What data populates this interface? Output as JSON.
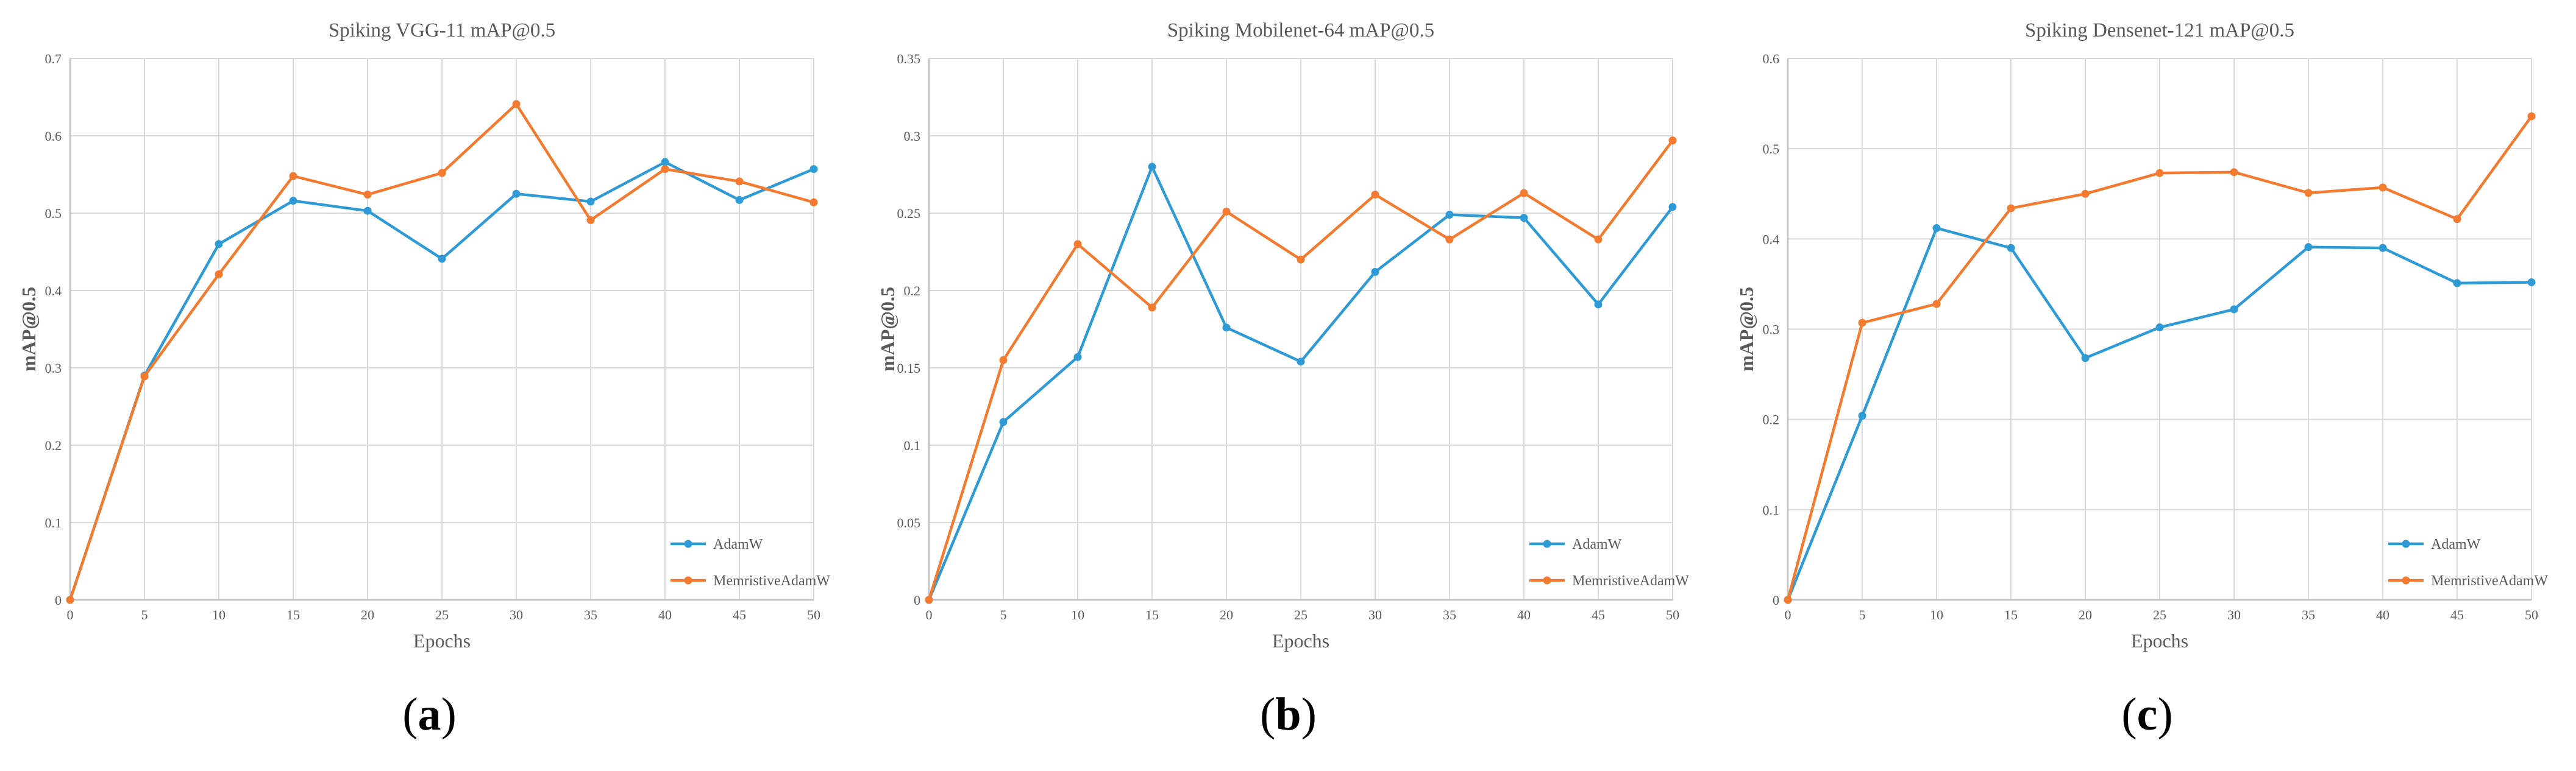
{
  "colors": {
    "adamw": "#2E9BD6",
    "memristive": "#F47A30",
    "grid": "#D9D9D9",
    "axis": "#BFBFBF",
    "text": "#595959"
  },
  "chart_data": [
    {
      "type": "line",
      "panel_label": "a",
      "title": "Spiking VGG-11 mAP@0.5",
      "xlabel": "Epochs",
      "ylabel": "mAP@0.5",
      "x": [
        0,
        5,
        10,
        15,
        20,
        25,
        30,
        35,
        40,
        45,
        50
      ],
      "xticks": [
        "0",
        "5",
        "10",
        "15",
        "20",
        "25",
        "30",
        "35",
        "40",
        "45",
        "50"
      ],
      "ylim": [
        0,
        0.7
      ],
      "yticks": [
        "0",
        "0.1",
        "0.2",
        "0.3",
        "0.4",
        "0.5",
        "0.6",
        "0.7"
      ],
      "grid": true,
      "legend_position": "bottom-right",
      "series": [
        {
          "name": "AdamW",
          "color_key": "adamw",
          "values": [
            0,
            0.29,
            0.46,
            0.516,
            0.503,
            0.441,
            0.525,
            0.515,
            0.566,
            0.517,
            0.557
          ]
        },
        {
          "name": "MemristiveAdamW",
          "color_key": "memristive",
          "values": [
            0,
            0.289,
            0.421,
            0.548,
            0.524,
            0.552,
            0.641,
            0.491,
            0.557,
            0.541,
            0.514
          ]
        }
      ]
    },
    {
      "type": "line",
      "panel_label": "b",
      "title": "Spiking Mobilenet-64 mAP@0.5",
      "xlabel": "Epochs",
      "ylabel": "mAP@0.5",
      "x": [
        0,
        5,
        10,
        15,
        20,
        25,
        30,
        35,
        40,
        45,
        50
      ],
      "xticks": [
        "0",
        "5",
        "10",
        "15",
        "20",
        "25",
        "30",
        "35",
        "40",
        "45",
        "50"
      ],
      "ylim": [
        0,
        0.35
      ],
      "yticks": [
        "0",
        "0.05",
        "0.1",
        "0.15",
        "0.2",
        "0.25",
        "0.3",
        "0.35"
      ],
      "grid": true,
      "legend_position": "bottom-right",
      "series": [
        {
          "name": "AdamW",
          "color_key": "adamw",
          "values": [
            0,
            0.115,
            0.157,
            0.28,
            0.176,
            0.154,
            0.212,
            0.249,
            0.247,
            0.191,
            0.254
          ]
        },
        {
          "name": "MemristiveAdamW",
          "color_key": "memristive",
          "values": [
            0,
            0.155,
            0.23,
            0.189,
            0.251,
            0.22,
            0.262,
            0.233,
            0.263,
            0.233,
            0.297
          ]
        }
      ]
    },
    {
      "type": "line",
      "panel_label": "c",
      "title": "Spiking Densenet-121 mAP@0.5",
      "xlabel": "Epochs",
      "ylabel": "mAP@0.5",
      "x": [
        0,
        5,
        10,
        15,
        20,
        25,
        30,
        35,
        40,
        45,
        50
      ],
      "xticks": [
        "0",
        "5",
        "10",
        "15",
        "20",
        "25",
        "30",
        "35",
        "40",
        "45",
        "50"
      ],
      "ylim": [
        0,
        0.6
      ],
      "yticks": [
        "0",
        "0.1",
        "0.2",
        "0.3",
        "0.4",
        "0.5",
        "0.6"
      ],
      "grid": true,
      "legend_position": "bottom-right",
      "series": [
        {
          "name": "AdamW",
          "color_key": "adamw",
          "values": [
            0,
            0.204,
            0.412,
            0.39,
            0.268,
            0.302,
            0.322,
            0.391,
            0.39,
            0.351,
            0.352
          ]
        },
        {
          "name": "MemristiveAdamW",
          "color_key": "memristive",
          "values": [
            0,
            0.307,
            0.328,
            0.434,
            0.45,
            0.473,
            0.474,
            0.451,
            0.457,
            0.422,
            0.536
          ]
        }
      ]
    }
  ]
}
